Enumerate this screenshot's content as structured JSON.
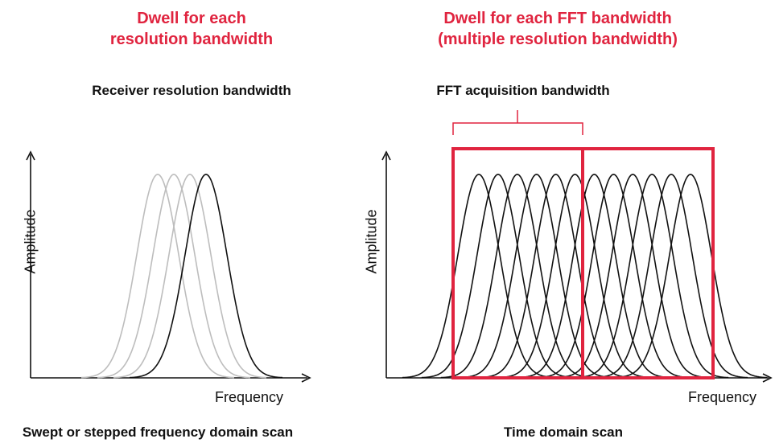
{
  "left_panel": {
    "title_line1": "Dwell for each",
    "title_line2": "resolution bandwidth",
    "subtitle": "Receiver resolution bandwidth",
    "y_axis_label": "Amplitude",
    "x_axis_label": "Frequency",
    "caption": "Swept or stepped frequency domain scan",
    "curve_count": 4
  },
  "right_panel": {
    "title_line1": "Dwell for each FFT bandwidth",
    "title_line2": "(multiple resolution bandwidth)",
    "subtitle": "FFT acquisition bandwidth",
    "y_axis_label": "Amplitude",
    "x_axis_label": "Frequency",
    "caption": "Time domain scan",
    "curve_count": 12,
    "fft_block_count": 2
  },
  "colors": {
    "accent_red": "#e0243f",
    "curve_black": "#111111",
    "curve_gray": "#bdbdbd"
  }
}
